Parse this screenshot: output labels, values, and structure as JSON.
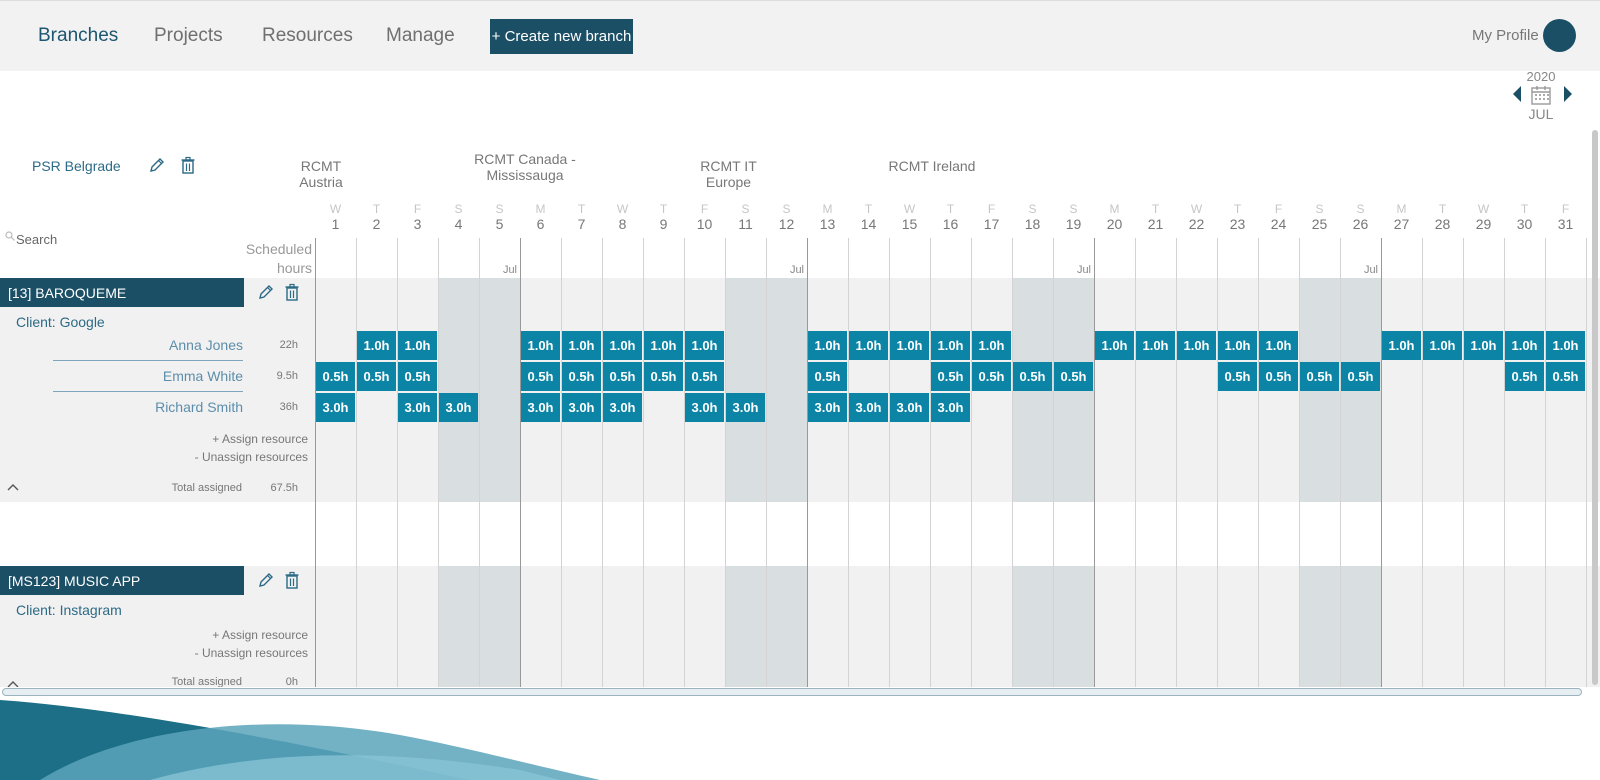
{
  "nav": {
    "items": [
      "Branches",
      "Projects",
      "Resources",
      "Manage"
    ],
    "active": "Branches",
    "create_button": "+ Create new branch",
    "profile_label": "My Profile"
  },
  "calendar": {
    "year": "2020",
    "month": "JUL"
  },
  "branches": [
    "PSR Belgrade",
    "RCMT Austria",
    "RCMT Canada -\nMississauga",
    "RCMT IT Europe",
    "RCMT Ireland"
  ],
  "search": {
    "placeholder": "Search"
  },
  "scheduled_label": "Scheduled\nhours",
  "month_marker": "Jul",
  "days": [
    {
      "dow": "W",
      "n": "1"
    },
    {
      "dow": "T",
      "n": "2"
    },
    {
      "dow": "F",
      "n": "3"
    },
    {
      "dow": "S",
      "n": "4"
    },
    {
      "dow": "S",
      "n": "5"
    },
    {
      "dow": "M",
      "n": "6"
    },
    {
      "dow": "T",
      "n": "7"
    },
    {
      "dow": "W",
      "n": "8"
    },
    {
      "dow": "T",
      "n": "9"
    },
    {
      "dow": "F",
      "n": "10"
    },
    {
      "dow": "S",
      "n": "11"
    },
    {
      "dow": "S",
      "n": "12"
    },
    {
      "dow": "M",
      "n": "13"
    },
    {
      "dow": "T",
      "n": "14"
    },
    {
      "dow": "W",
      "n": "15"
    },
    {
      "dow": "T",
      "n": "16"
    },
    {
      "dow": "F",
      "n": "17"
    },
    {
      "dow": "S",
      "n": "18"
    },
    {
      "dow": "S",
      "n": "19"
    },
    {
      "dow": "M",
      "n": "20"
    },
    {
      "dow": "T",
      "n": "21"
    },
    {
      "dow": "W",
      "n": "22"
    },
    {
      "dow": "T",
      "n": "23"
    },
    {
      "dow": "F",
      "n": "24"
    },
    {
      "dow": "S",
      "n": "25"
    },
    {
      "dow": "S",
      "n": "26"
    },
    {
      "dow": "M",
      "n": "27"
    },
    {
      "dow": "T",
      "n": "28"
    },
    {
      "dow": "W",
      "n": "29"
    },
    {
      "dow": "T",
      "n": "30"
    },
    {
      "dow": "F",
      "n": "31"
    }
  ],
  "projects": [
    {
      "title": "[13] BAROQUEME",
      "client": "Client: Google",
      "resources": [
        {
          "name": "Anna Jones",
          "hours": "22h",
          "cells": [
            "",
            "1.0h",
            "1.0h",
            "",
            "",
            "1.0h",
            "1.0h",
            "1.0h",
            "1.0h",
            "1.0h",
            "",
            "",
            "1.0h",
            "1.0h",
            "1.0h",
            "1.0h",
            "1.0h",
            "",
            "",
            "1.0h",
            "1.0h",
            "1.0h",
            "1.0h",
            "1.0h",
            "",
            "",
            "1.0h",
            "1.0h",
            "1.0h",
            "1.0h",
            "1.0h"
          ]
        },
        {
          "name": "Emma White",
          "hours": "9.5h",
          "cells": [
            "0.5h",
            "0.5h",
            "0.5h",
            "",
            "",
            "0.5h",
            "0.5h",
            "0.5h",
            "0.5h",
            "0.5h",
            "",
            "",
            "0.5h",
            "",
            "",
            "0.5h",
            "0.5h",
            "0.5h",
            "0.5h",
            "",
            "",
            "",
            "0.5h",
            "0.5h",
            "0.5h",
            "0.5h",
            "",
            "",
            "",
            "0.5h",
            "0.5h"
          ]
        },
        {
          "name": "Richard Smith",
          "hours": "36h",
          "cells": [
            "3.0h",
            "",
            "3.0h",
            "3.0h",
            "",
            "3.0h",
            "3.0h",
            "3.0h",
            "",
            "3.0h",
            "3.0h",
            "",
            "3.0h",
            "3.0h",
            "3.0h",
            "3.0h",
            "",
            "",
            "",
            "",
            "",
            "",
            "",
            "",
            "",
            "",
            "",
            "",
            "",
            "",
            ""
          ]
        }
      ],
      "assign": "+ Assign resource",
      "unassign": "- Unassign resources",
      "total_label": "Total assigned",
      "total": "67.5h"
    },
    {
      "title": "[MS123] MUSIC APP",
      "client": "Client: Instagram",
      "resources": [],
      "assign": "+ Assign resource",
      "unassign": "- Unassign resources",
      "total_label": "Total assigned",
      "total": "0h"
    }
  ],
  "colors": {
    "accent": "#1a4f66",
    "cell": "#0b84a5",
    "weekend": "#d9dfe1",
    "band": "#f1f1f1"
  }
}
